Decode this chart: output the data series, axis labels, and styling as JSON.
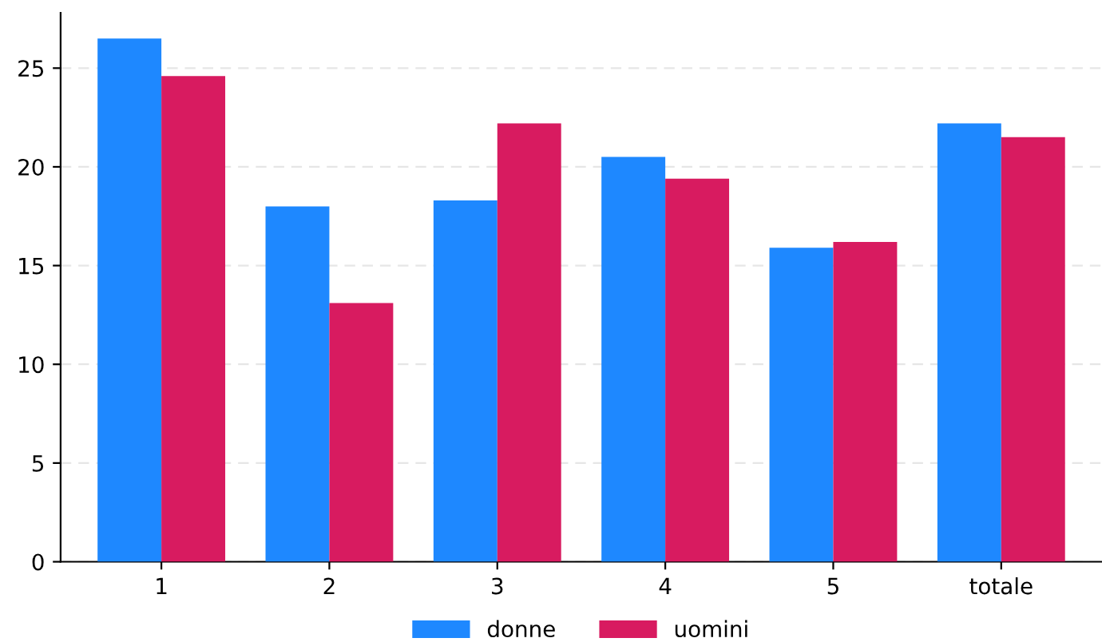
{
  "chart_data": {
    "type": "bar",
    "categories": [
      "1",
      "2",
      "3",
      "4",
      "5",
      "totale"
    ],
    "series": [
      {
        "name": "donne",
        "color": "#1e88ff",
        "values": [
          26.5,
          18.0,
          18.3,
          20.5,
          15.9,
          22.2
        ]
      },
      {
        "name": "uomini",
        "color": "#d81b60",
        "values": [
          24.6,
          13.1,
          22.2,
          19.4,
          16.2,
          21.5
        ]
      }
    ],
    "ylim": [
      0,
      27.8
    ],
    "yticks": [
      0,
      5,
      10,
      15,
      20,
      25
    ],
    "grid": "y",
    "legend": "bottom"
  }
}
